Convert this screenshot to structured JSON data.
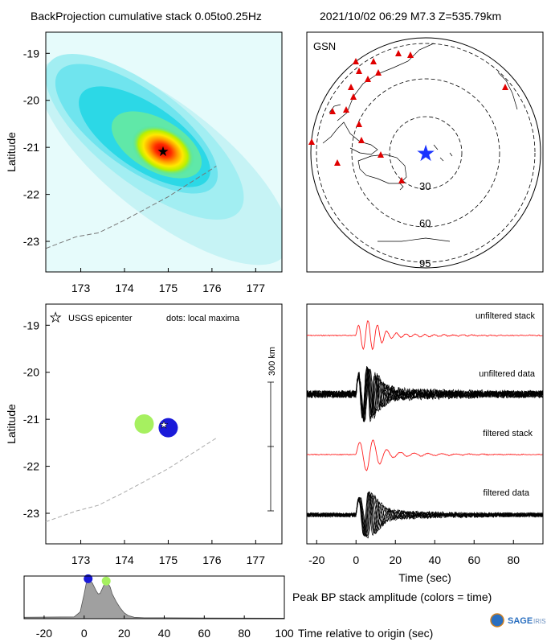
{
  "header": {
    "title_left": "BackProjection cumulative stack 0.05to0.25Hz",
    "title_right": "2021/10/02 06:29  M7.3  Z=535.79km"
  },
  "colors": {
    "red_trace": "#ff2020",
    "black_trace": "#000000",
    "station_marker": "#e00000",
    "epicenter_star_map": "#1a33ff",
    "dot_early": "#a6f060",
    "dot_late": "#1a1ad9",
    "stf_fill": "#a0a0a0"
  },
  "chart_data": [
    {
      "id": "bp-heatmap",
      "type": "heatmap",
      "xlabel": "",
      "ylabel": "Latitude",
      "x_ticks": [
        173,
        174,
        175,
        176,
        177
      ],
      "y_ticks": [
        -19,
        -20,
        -21,
        -22,
        -23
      ],
      "xlim": [
        172.2,
        177.6
      ],
      "ylim": [
        -23.65,
        -18.55
      ],
      "peak": {
        "lon": 174.85,
        "lat": -21.1
      },
      "epicenter": {
        "lon": 174.85,
        "lat": -21.1
      },
      "trench": [
        [
          172.2,
          -23.15
        ],
        [
          172.9,
          -22.9
        ],
        [
          173.4,
          -22.82
        ],
        [
          174.0,
          -22.55
        ],
        [
          175.0,
          -22.05
        ],
        [
          176.1,
          -21.4
        ]
      ]
    },
    {
      "id": "station-map",
      "type": "scatter",
      "label": "GSN",
      "ring_labels": [
        "30",
        "60",
        "95"
      ],
      "epicenter_marker": "blue-star"
    },
    {
      "id": "local-maxima",
      "type": "scatter",
      "xlabel": "",
      "ylabel": "Latitude",
      "x_ticks": [
        173,
        174,
        175,
        176,
        177
      ],
      "y_ticks": [
        -19,
        -20,
        -21,
        -22,
        -23
      ],
      "xlim": [
        172.2,
        177.6
      ],
      "ylim": [
        -23.65,
        -18.55
      ],
      "legend_epicenter": "USGS epicenter",
      "legend_dots": "dots: local maxima",
      "scale_bar_label": "300 km",
      "points": [
        {
          "lon": 174.45,
          "lat": -21.1,
          "color": "#a6f060",
          "time": 11
        },
        {
          "lon": 175.0,
          "lat": -21.18,
          "color": "#1a1ad9",
          "time": 2
        }
      ],
      "epicenter": {
        "lon": 174.85,
        "lat": -21.1
      },
      "trench": [
        [
          172.2,
          -23.18
        ],
        [
          172.9,
          -22.95
        ],
        [
          173.4,
          -22.83
        ],
        [
          174.0,
          -22.55
        ],
        [
          175.0,
          -22.05
        ],
        [
          176.1,
          -21.4
        ]
      ]
    },
    {
      "id": "waveforms",
      "type": "line",
      "xlabel": "Time (sec)",
      "x_ticks": [
        -20,
        0,
        20,
        40,
        60,
        80
      ],
      "xlim": [
        -25,
        95
      ],
      "traces": [
        {
          "label": "unfiltered stack",
          "color": "#ff2020"
        },
        {
          "label": "unfiltered data",
          "color": "#000000"
        },
        {
          "label": "filtered stack",
          "color": "#ff2020"
        },
        {
          "label": "filtered data",
          "color": "#000000"
        }
      ]
    },
    {
      "id": "stf",
      "type": "area",
      "xlabel": "Time relative to origin (sec)",
      "title": "Peak BP stack amplitude (colors = time)",
      "x_ticks": [
        -20,
        0,
        20,
        40,
        60,
        80,
        100
      ],
      "xlim": [
        -30,
        100
      ],
      "x": [
        -30,
        -5,
        -2,
        0,
        1,
        2,
        4,
        6,
        7,
        8,
        9,
        10,
        11,
        12,
        13,
        14,
        16,
        18,
        20,
        22,
        25,
        30,
        40,
        60,
        100
      ],
      "y": [
        0.03,
        0.04,
        0.15,
        0.55,
        0.78,
        0.85,
        0.8,
        0.62,
        0.55,
        0.56,
        0.66,
        0.76,
        0.8,
        0.78,
        0.7,
        0.55,
        0.38,
        0.24,
        0.13,
        0.07,
        0.03,
        0.02,
        0.02,
        0.015,
        0.01
      ],
      "markers": [
        {
          "time": 2,
          "color": "#1a1ad9"
        },
        {
          "time": 11,
          "color": "#a6f060"
        }
      ]
    }
  ],
  "footer": {
    "logo_text": "SAGE",
    "logo_sub": "IRIS"
  }
}
